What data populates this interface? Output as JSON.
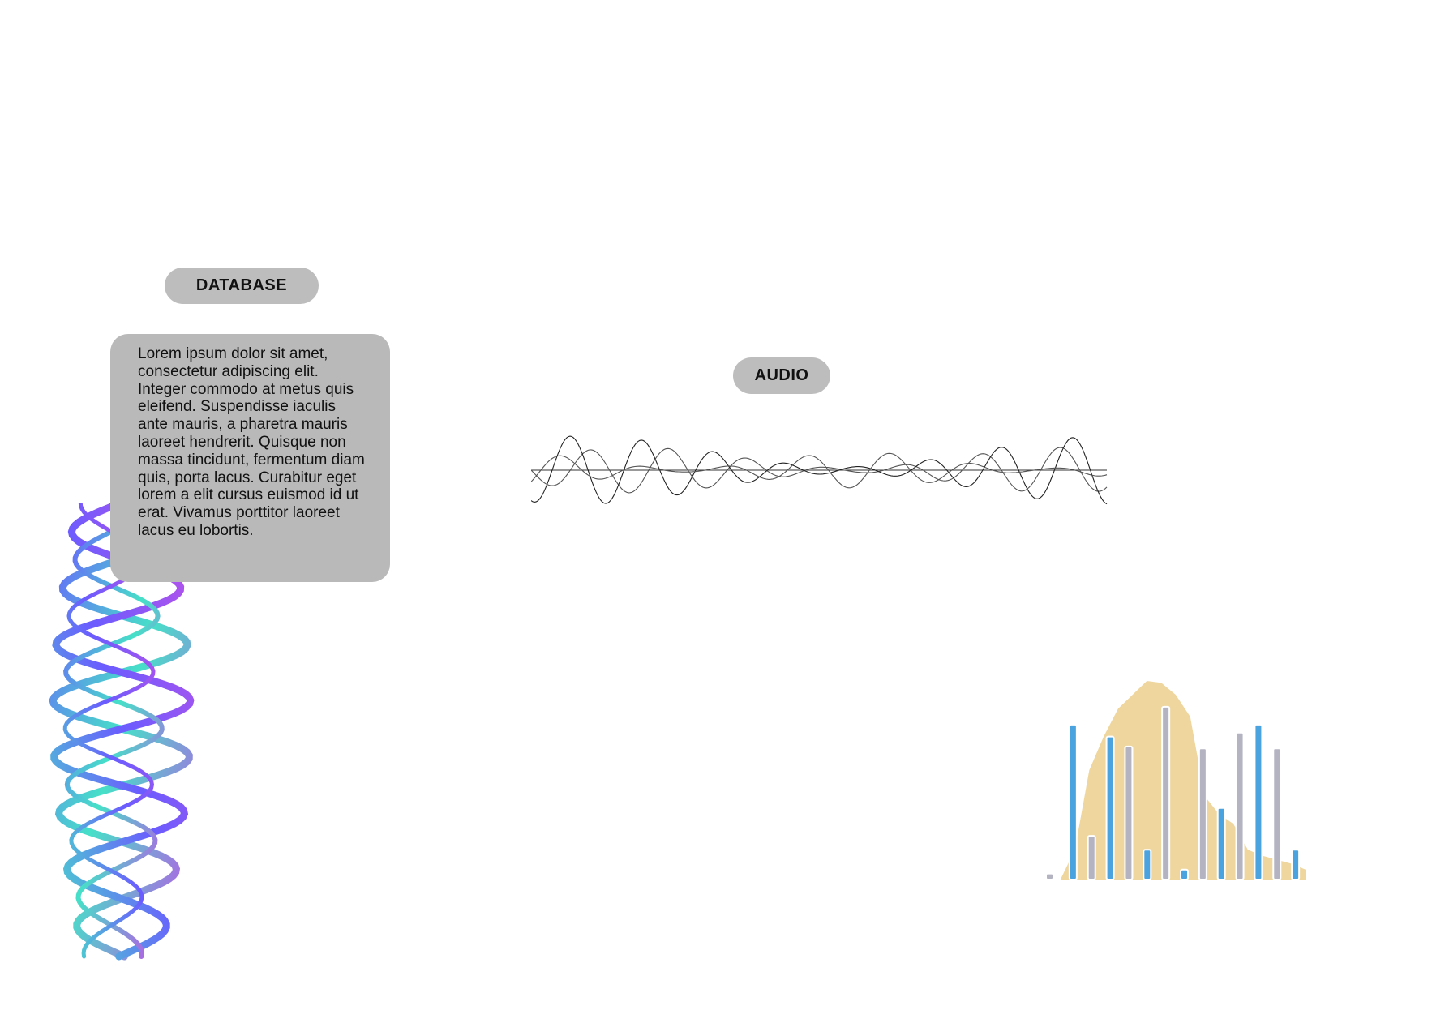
{
  "labels": {
    "database": "DATABASE",
    "audio": "AUDIO"
  },
  "card": {
    "text": "Lorem ipsum dolor sit amet, consectetur adipiscing elit. Integer commodo at metus quis eleifend. Suspendisse iaculis ante mauris, a pharetra mauris laoreet hendrerit. Quisque non massa tincidunt, fermentum diam quis, porta lacus. Curabitur eget lorem a elit cursus euismod id ut erat. Vivamus porttitor laoreet lacus eu lobortis."
  },
  "colors": {
    "pill": "#bdbdbd",
    "card": "#b9b9b9",
    "bar_blue": "#4aa3df",
    "bar_gray": "#b3b3c1",
    "area_yellow": "#edd396",
    "helix_a": "#6a5cff",
    "helix_b": "#c050e8",
    "helix_c": "#46e0c8"
  },
  "chart_data": {
    "type": "bar",
    "area": [
      0,
      0,
      0.15,
      0.55,
      0.72,
      0.86,
      0.93,
      1.0,
      0.99,
      0.93,
      0.82,
      0.42,
      0.33,
      0.28,
      0.15,
      0.12,
      0.1,
      0.08,
      0.05
    ],
    "bars": [
      {
        "v": 0.03,
        "c": "gray"
      },
      {
        "v": 0.78,
        "c": "blue"
      },
      {
        "v": 0.22,
        "c": "gray"
      },
      {
        "v": 0.72,
        "c": "blue"
      },
      {
        "v": 0.67,
        "c": "gray"
      },
      {
        "v": 0.15,
        "c": "blue"
      },
      {
        "v": 0.87,
        "c": "gray"
      },
      {
        "v": 0.05,
        "c": "blue"
      },
      {
        "v": 0.66,
        "c": "gray"
      },
      {
        "v": 0.36,
        "c": "blue"
      },
      {
        "v": 0.74,
        "c": "gray"
      },
      {
        "v": 0.78,
        "c": "blue"
      },
      {
        "v": 0.66,
        "c": "gray"
      },
      {
        "v": 0.15,
        "c": "blue"
      }
    ]
  }
}
